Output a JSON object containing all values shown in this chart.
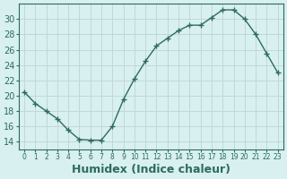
{
  "x": [
    0,
    1,
    2,
    3,
    4,
    5,
    6,
    7,
    8,
    9,
    10,
    11,
    12,
    13,
    14,
    15,
    16,
    17,
    18,
    19,
    20,
    21,
    22,
    23
  ],
  "y": [
    20.5,
    19.0,
    18.0,
    17.0,
    15.5,
    14.3,
    14.2,
    14.2,
    16.0,
    19.5,
    22.2,
    24.5,
    26.5,
    27.5,
    28.5,
    29.2,
    29.2,
    30.2,
    31.2,
    31.2,
    30.0,
    28.0,
    25.5,
    23.0
  ],
  "line_color": "#2e6b5e",
  "marker": "+",
  "marker_size": 4,
  "bg_color": "#d8f0ef",
  "grid_color": "#c0d8d8",
  "tick_color": "#2e6b5e",
  "xlabel": "Humidex (Indice chaleur)",
  "xlabel_fontsize": 9,
  "ylabel_ticks": [
    14,
    16,
    18,
    20,
    22,
    24,
    26,
    28,
    30
  ],
  "ylim": [
    13,
    32
  ],
  "xlim": [
    -0.5,
    23.5
  ],
  "xtick_labels": [
    "0",
    "1",
    "2",
    "3",
    "4",
    "5",
    "6",
    "7",
    "8",
    "9",
    "10",
    "11",
    "12",
    "13",
    "14",
    "15",
    "16",
    "17",
    "18",
    "19",
    "20",
    "21",
    "22",
    "23"
  ],
  "xticks": [
    0,
    1,
    2,
    3,
    4,
    5,
    6,
    7,
    8,
    9,
    10,
    11,
    12,
    13,
    14,
    15,
    16,
    17,
    18,
    19,
    20,
    21,
    22,
    23
  ]
}
